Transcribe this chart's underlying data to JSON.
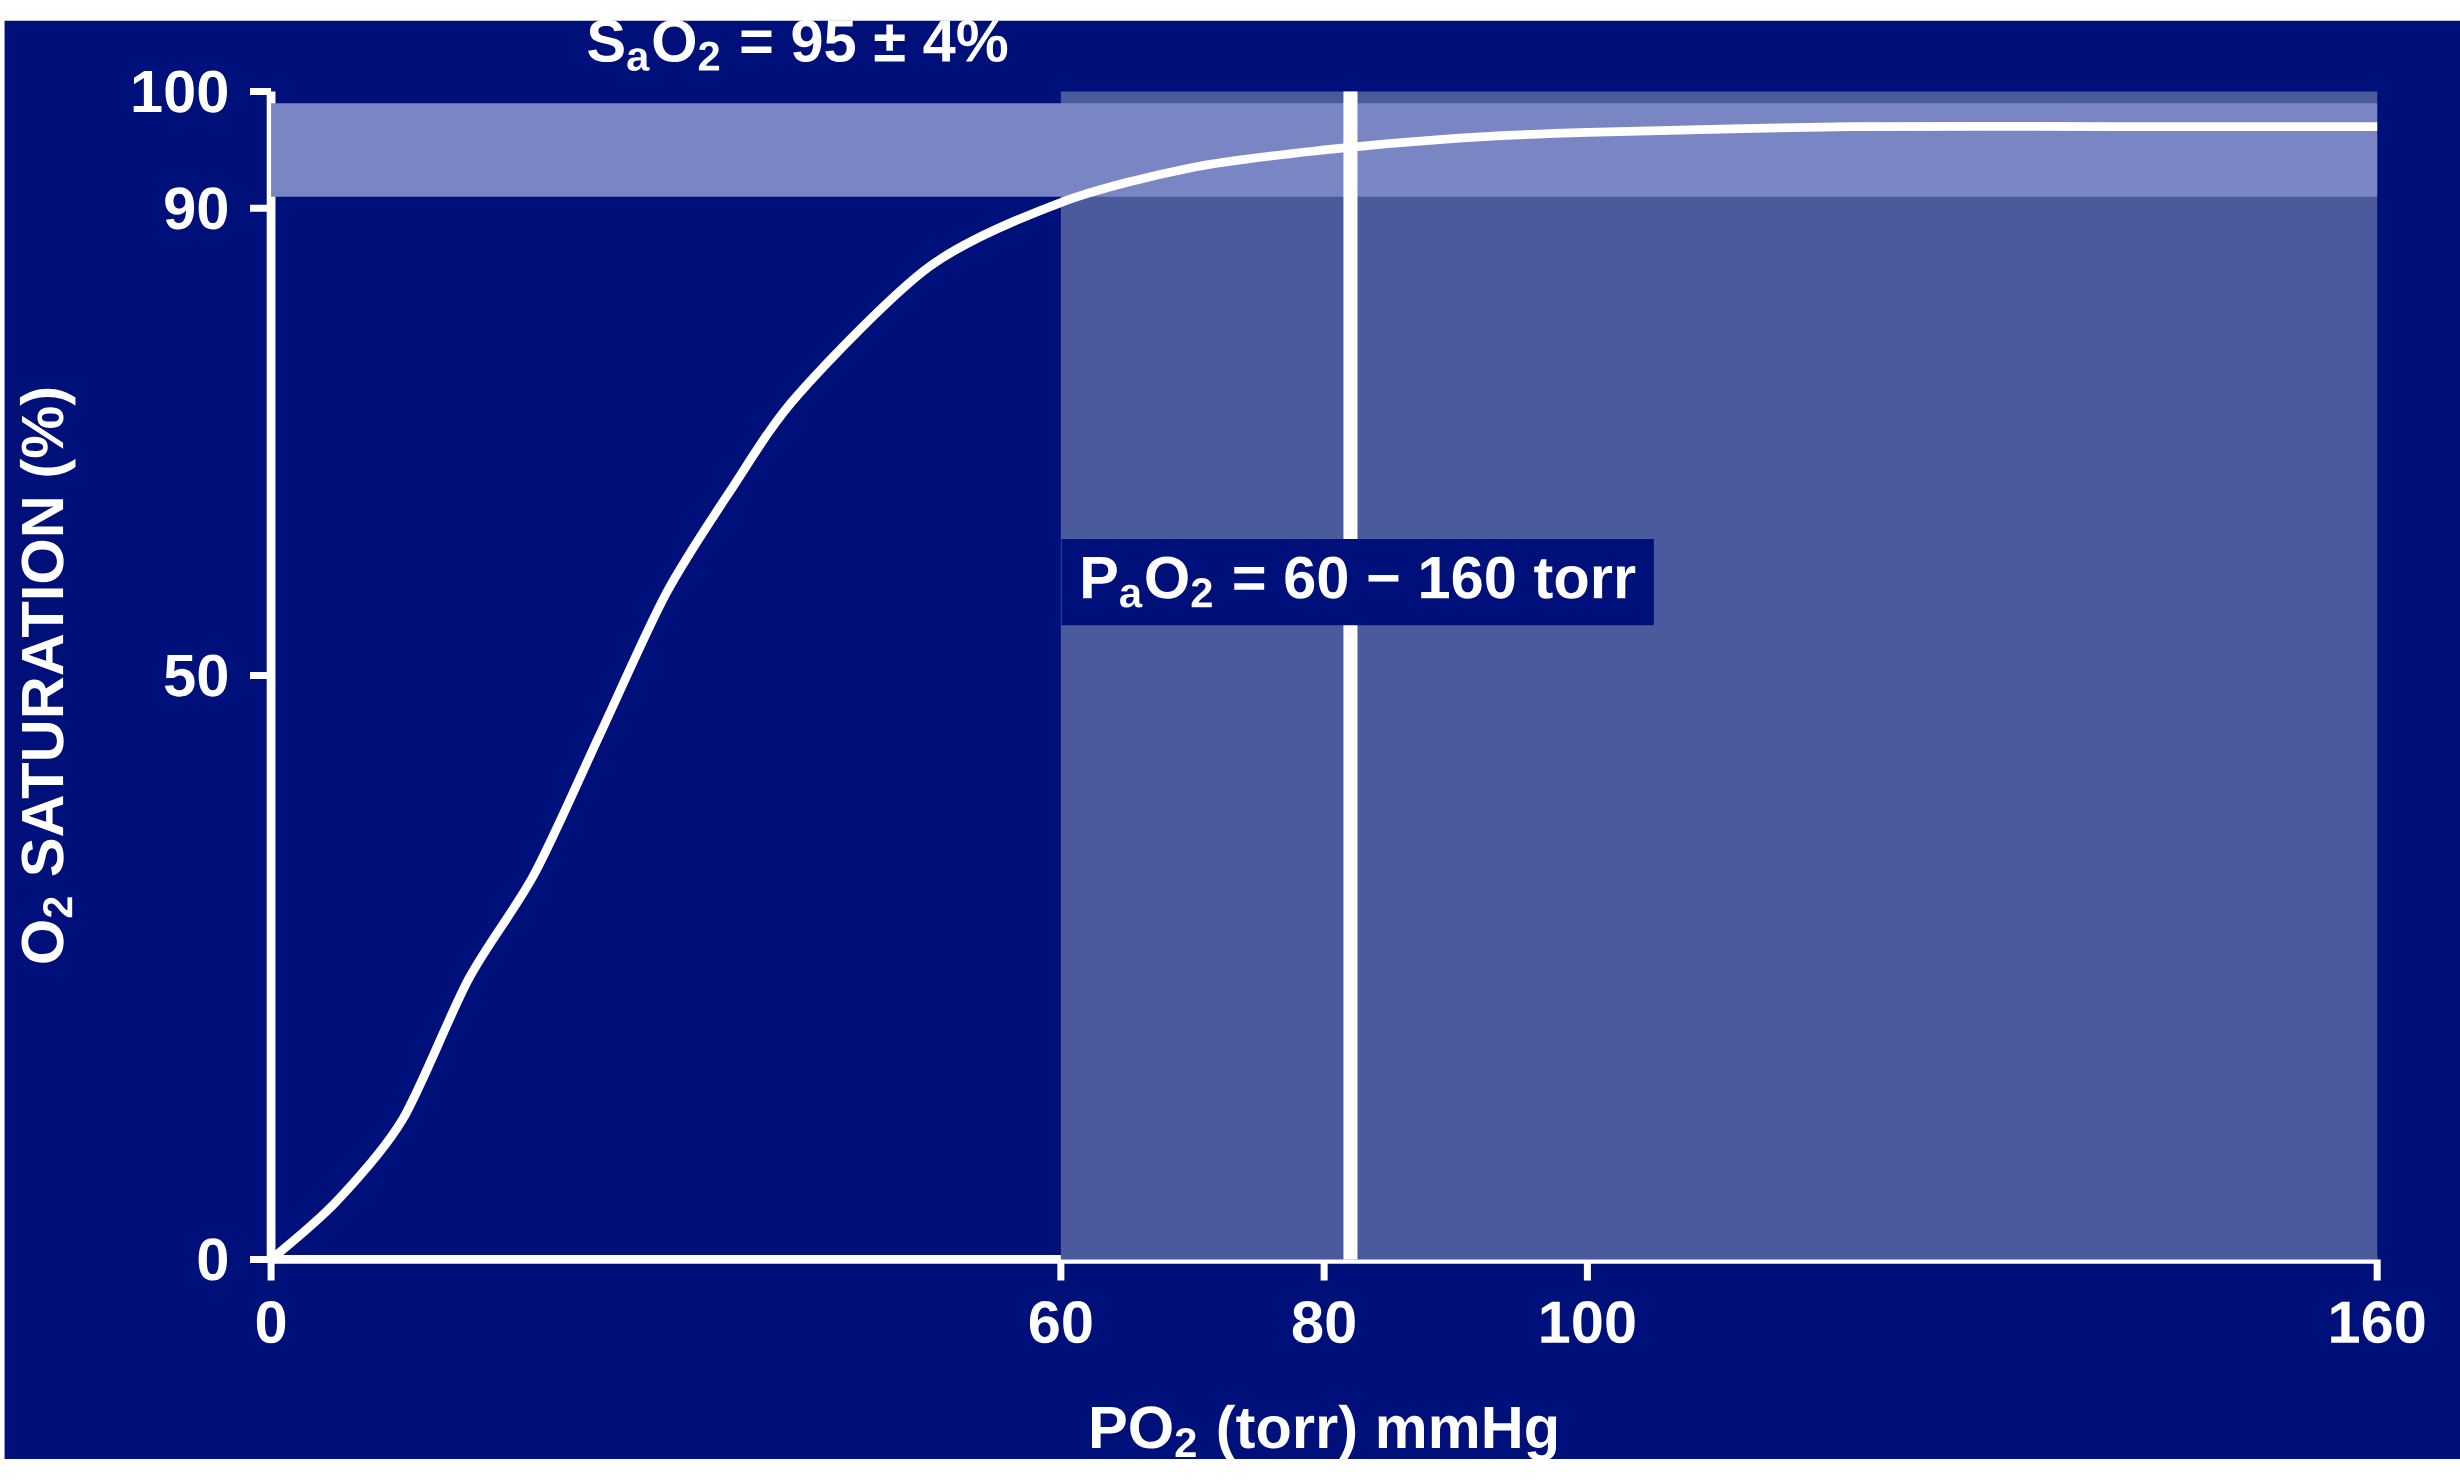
{
  "chart_data": {
    "type": "line",
    "xlabel": "PO$_{2}$  (torr) mmHg",
    "ylabel": "O$_{2}$ SATURATION (%)",
    "x": [
      0,
      5,
      10,
      15,
      20,
      25,
      30,
      35,
      40,
      50,
      60,
      70,
      80,
      90,
      100,
      120,
      140,
      160
    ],
    "series": [
      {
        "color": "#ffffff",
        "values": [
          0,
          5,
          12,
          24,
          33,
          45,
          57,
          66,
          74,
          85,
          90.5,
          93.5,
          95,
          96,
          96.5,
          97,
          97,
          97
        ]
      }
    ],
    "xlim": [
      0,
      160
    ],
    "ylim": [
      0,
      100
    ],
    "xticks": [
      0,
      60,
      80,
      100,
      160
    ],
    "yticks": [
      0,
      50,
      90,
      100
    ],
    "bands": [
      {
        "axis": "x",
        "from": 60,
        "to": 160,
        "label": "P$_{a}$O$_{2}$ = 60 − 160 torr",
        "color": "#4b5a9c"
      },
      {
        "axis": "y",
        "from": 91,
        "to": 99,
        "label": "S$_{a}$O$_{2}$ = 95 ± 4%",
        "color": "#7a86c4"
      }
    ],
    "ref_lines": [
      {
        "axis": "x",
        "value": 82,
        "color": "#ffffff"
      }
    ],
    "grid": false,
    "marker": "none",
    "line_style": "solid"
  }
}
